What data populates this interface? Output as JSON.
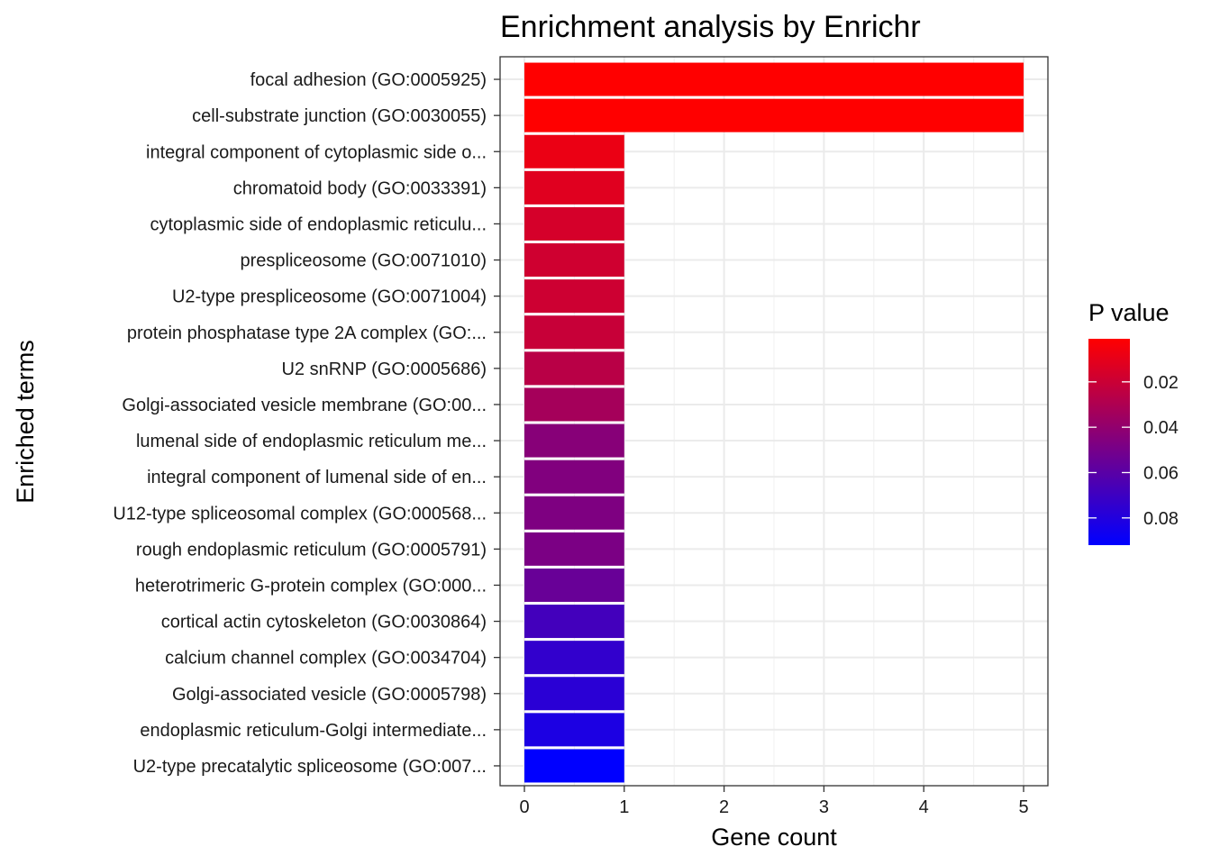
{
  "chart_data": {
    "type": "bar",
    "orientation": "horizontal",
    "title": "Enrichment analysis by Enrichr",
    "xlabel": "Gene count",
    "ylabel": "Enriched terms",
    "xlim": [
      0,
      5
    ],
    "xticks": [
      "0",
      "1",
      "2",
      "3",
      "4",
      "5"
    ],
    "grid": true,
    "categories": [
      "focal adhesion (GO:0005925)",
      "cell-substrate junction (GO:0030055)",
      "integral component of cytoplasmic side o...",
      "chromatoid body (GO:0033391)",
      "cytoplasmic side of endoplasmic reticulu...",
      "prespliceosome (GO:0071010)",
      "U2-type prespliceosome (GO:0071004)",
      "protein phosphatase type 2A complex (GO:...",
      "U2 snRNP (GO:0005686)",
      "Golgi-associated vesicle membrane (GO:00...",
      "lumenal side of endoplasmic reticulum me...",
      "integral component of lumenal side of en...",
      "U12-type spliceosomal complex (GO:000568...",
      "rough endoplasmic reticulum (GO:0005791)",
      "heterotrimeric G-protein complex (GO:000...",
      "cortical actin cytoskeleton (GO:0030864)",
      "calcium channel complex (GO:0034704)",
      "Golgi-associated vesicle (GO:0005798)",
      "endoplasmic reticulum-Golgi intermediate...",
      "U2-type precatalytic spliceosome (GO:007..."
    ],
    "values": [
      5,
      5,
      1,
      1,
      1,
      1,
      1,
      1,
      1,
      1,
      1,
      1,
      1,
      1,
      1,
      1,
      1,
      1,
      1,
      1
    ],
    "pvalues": [
      0.001,
      0.001,
      0.008,
      0.012,
      0.016,
      0.018,
      0.019,
      0.021,
      0.026,
      0.033,
      0.044,
      0.046,
      0.047,
      0.048,
      0.055,
      0.068,
      0.074,
      0.077,
      0.082,
      0.092
    ],
    "legend": {
      "title": "P value",
      "placement": "right",
      "min": 0.001,
      "max": 0.092,
      "low_color": "#ff0000",
      "high_color": "#0000ff",
      "ticks": [
        0.02,
        0.04,
        0.06,
        0.08
      ],
      "tick_labels": [
        "0.02",
        "0.04",
        "0.06",
        "0.08"
      ]
    }
  }
}
